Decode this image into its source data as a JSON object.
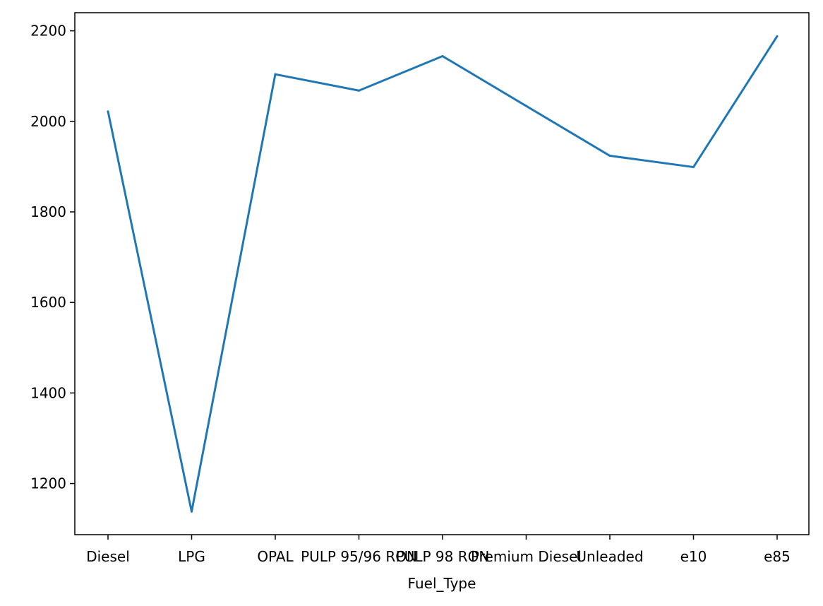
{
  "chart_data": {
    "type": "line",
    "title": "",
    "xlabel": "Fuel_Type",
    "ylabel": "",
    "categories": [
      "Diesel",
      "LPG",
      "OPAL",
      "PULP 95/96 RON",
      "PULP 98 RON",
      "Premium Diesel",
      "Unleaded",
      "e10",
      "e85"
    ],
    "series": [
      {
        "values": [
          2022,
          1138,
          2104,
          2068,
          2144,
          2034,
          1924,
          1899,
          2188
        ]
      }
    ],
    "yticks": [
      1200,
      1400,
      1600,
      1800,
      2000,
      2200
    ],
    "ylim": [
      1087,
      2240
    ],
    "grid": false,
    "colors": {
      "line": "#1f77b4",
      "axes": "#000000",
      "background": "#ffffff"
    }
  }
}
